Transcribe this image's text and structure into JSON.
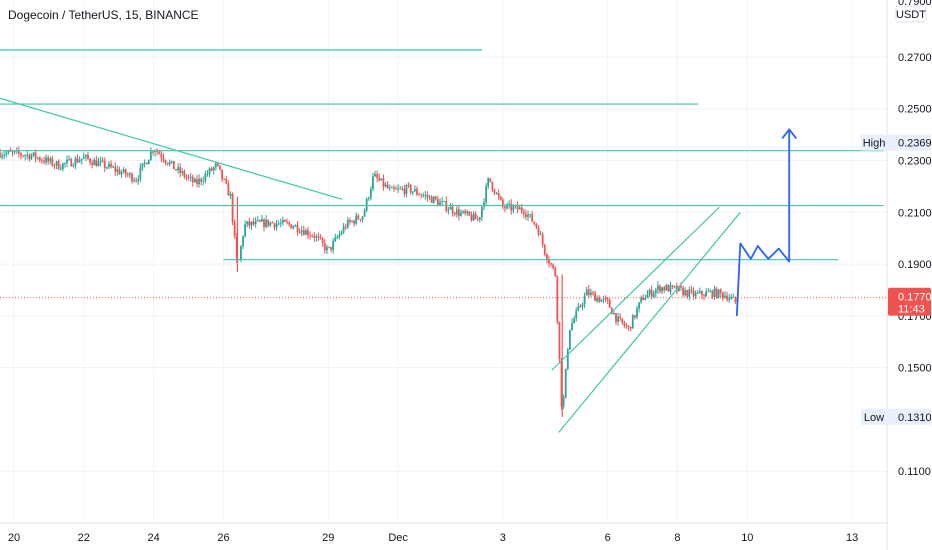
{
  "header": {
    "title": "Dogecoin / TetherUS, 15, BINANCE",
    "currency": "USDT",
    "top_cut_label": "0.7900"
  },
  "chart_data": {
    "type": "candlestick",
    "title": "Dogecoin / TetherUS, 15, BINANCE",
    "ylim": [
      0.09,
      0.292
    ],
    "y_ticks": [
      "0.2700",
      "0.2500",
      "0.2300",
      "0.2100",
      "0.1900",
      "0.1700",
      "0.1500",
      "0.1100"
    ],
    "x_ticks": [
      "20",
      "22",
      "24",
      "26",
      "29",
      "Dec",
      "3",
      "6",
      "8",
      "10",
      "13"
    ],
    "x_tick_days": [
      20,
      22,
      24,
      26,
      29,
      31,
      34,
      37,
      39,
      41,
      44
    ],
    "xlim_days": [
      19.6,
      45.0
    ],
    "last_price": {
      "label": "0.1770",
      "value": 0.177,
      "countdown": "11:43"
    },
    "high_marker": {
      "label": "High",
      "value_label": "0.2369",
      "value": 0.2369
    },
    "low_marker": {
      "label": "Low",
      "value_label": "0.1310",
      "value": 0.131
    },
    "price_path": [
      [
        19.6,
        0.233
      ],
      [
        20.5,
        0.232
      ],
      [
        21.3,
        0.228
      ],
      [
        22.0,
        0.231
      ],
      [
        22.8,
        0.227
      ],
      [
        23.5,
        0.223
      ],
      [
        24.0,
        0.235
      ],
      [
        24.6,
        0.227
      ],
      [
        25.2,
        0.221
      ],
      [
        25.8,
        0.228
      ],
      [
        26.2,
        0.216
      ],
      [
        26.4,
        0.188
      ],
      [
        26.6,
        0.205
      ],
      [
        27.3,
        0.206
      ],
      [
        28.0,
        0.205
      ],
      [
        28.6,
        0.201
      ],
      [
        29.0,
        0.195
      ],
      [
        29.5,
        0.205
      ],
      [
        30.0,
        0.209
      ],
      [
        30.3,
        0.224
      ],
      [
        30.8,
        0.218
      ],
      [
        31.3,
        0.219
      ],
      [
        32.0,
        0.215
      ],
      [
        32.7,
        0.21
      ],
      [
        33.3,
        0.207
      ],
      [
        33.6,
        0.223
      ],
      [
        34.0,
        0.212
      ],
      [
        34.6,
        0.211
      ],
      [
        35.0,
        0.204
      ],
      [
        35.2,
        0.195
      ],
      [
        35.5,
        0.186
      ],
      [
        35.7,
        0.131
      ],
      [
        35.9,
        0.165
      ],
      [
        36.4,
        0.179
      ],
      [
        37.0,
        0.175
      ],
      [
        37.3,
        0.168
      ],
      [
        37.6,
        0.165
      ],
      [
        38.0,
        0.177
      ],
      [
        38.5,
        0.181
      ],
      [
        39.0,
        0.18
      ],
      [
        39.5,
        0.178
      ],
      [
        40.0,
        0.179
      ],
      [
        40.4,
        0.178
      ],
      [
        40.7,
        0.175
      ]
    ],
    "drawings": {
      "horizontal_lines": [
        {
          "value": 0.2727,
          "x_start": 19.6,
          "x_end": 33.4
        },
        {
          "value": 0.2518,
          "x_start": 19.6,
          "x_end": 39.6
        },
        {
          "value": 0.2338,
          "x_start": 19.6,
          "x_end": 44.9
        },
        {
          "value": 0.2126,
          "x_start": 19.6,
          "x_end": 44.9
        },
        {
          "value": 0.1917,
          "x_start": 26.0,
          "x_end": 43.6
        }
      ],
      "trend_lines": [
        {
          "from": [
            19.6,
            0.254
          ],
          "to": [
            29.4,
            0.215
          ]
        },
        {
          "from": [
            35.4,
            0.149
          ],
          "to": [
            40.2,
            0.212
          ]
        },
        {
          "from": [
            35.6,
            0.125
          ],
          "to": [
            40.8,
            0.21
          ]
        }
      ],
      "projection": [
        [
          40.7,
          0.17
        ],
        [
          40.8,
          0.198
        ],
        [
          41.1,
          0.192
        ],
        [
          41.3,
          0.197
        ],
        [
          41.6,
          0.192
        ],
        [
          41.9,
          0.196
        ],
        [
          42.2,
          0.191
        ],
        [
          42.2,
          0.242
        ]
      ]
    }
  },
  "colors": {
    "background": "#ffffff",
    "grid": "#f0f3fa",
    "up": "#26a69a",
    "down": "#ef5350",
    "drawing_line": "#3fc7a8",
    "projection": "#2962ff",
    "text": "#131722",
    "axis_border": "#e0e3eb",
    "last_price_bg": "#ef5350",
    "marker_bg": "#e8f0fb",
    "dotted_line": "#ef5350"
  }
}
